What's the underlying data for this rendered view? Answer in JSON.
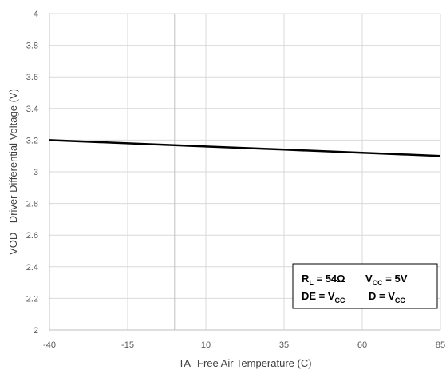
{
  "chart_data": {
    "type": "line",
    "xlabel": "TA- Free Air Temperature (C)",
    "ylabel": "VOD - Driver Differential Voltage (V)",
    "xlim": [
      -40,
      85
    ],
    "ylim": [
      2,
      4
    ],
    "x_ticks": [
      "-40",
      "-15",
      "10",
      "35",
      "60",
      "85"
    ],
    "y_ticks": [
      "2",
      "2.2",
      "2.4",
      "2.6",
      "2.8",
      "3",
      "3.2",
      "3.4",
      "3.6",
      "3.8",
      "4"
    ],
    "grid": true,
    "series": [
      {
        "x": [
          -40,
          -15,
          10,
          35,
          60,
          85
        ],
        "y": [
          3.2,
          3.18,
          3.16,
          3.14,
          3.12,
          3.1
        ]
      }
    ],
    "annotation": {
      "line1_part1_main": "R",
      "line1_part1_sub": "L",
      "line1_part1_rest": " = 54Ω",
      "line1_part2_main": "V",
      "line1_part2_sub": "CC",
      "line1_part2_rest": " = 5V",
      "line2_part1_main": "DE =  V",
      "line2_part1_sub": "CC",
      "line2_part2_main": "D =  V",
      "line2_part2_sub": "CC"
    },
    "colors": {
      "line": "#000000",
      "grid": "#d9d9d9",
      "axis": "#bfbfbf"
    }
  }
}
